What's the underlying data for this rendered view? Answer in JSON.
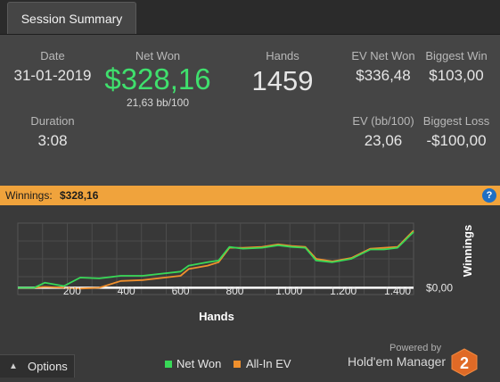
{
  "tab": {
    "title": "Session Summary"
  },
  "stats": {
    "date_label": "Date",
    "date_value": "31-01-2019",
    "net_won_label": "Net Won",
    "net_won_value": "$328,16",
    "net_won_sub": "21,63 bb/100",
    "hands_label": "Hands",
    "hands_value": "1459",
    "ev_net_won_label": "EV Net Won",
    "ev_net_won_value": "$336,48",
    "biggest_win_label": "Biggest Win",
    "biggest_win_value": "$103,00",
    "duration_label": "Duration",
    "duration_value": "3:08",
    "ev_bb_label": "EV (bb/100)",
    "ev_bb_value": "23,06",
    "biggest_loss_label": "Biggest Loss",
    "biggest_loss_value": "-$100,00"
  },
  "bar": {
    "key": "Winnings:",
    "amount": "$328,16",
    "help": "?"
  },
  "chart_data": {
    "type": "line",
    "xlabel": "Hands",
    "ylabel": "Winnings",
    "xlim": [
      0,
      1459
    ],
    "x_ticks": [
      200,
      400,
      600,
      800,
      1000,
      1200,
      1400
    ],
    "x_tick_labels": [
      "200",
      "400",
      "600",
      "800",
      "1.000",
      "1.200",
      "1.400"
    ],
    "y_tick_labels": [
      "$0,00"
    ],
    "ylim": [
      -40,
      380
    ],
    "grid": true,
    "series": [
      {
        "name": "Net Won",
        "color": "#38d957",
        "x": [
          0,
          60,
          100,
          170,
          230,
          300,
          380,
          460,
          600,
          630,
          700,
          740,
          780,
          830,
          900,
          960,
          1010,
          1060,
          1100,
          1160,
          1230,
          1300,
          1350,
          1400,
          1459
        ],
        "y": [
          0,
          0,
          30,
          10,
          60,
          55,
          70,
          70,
          95,
          130,
          150,
          160,
          240,
          230,
          235,
          250,
          240,
          235,
          160,
          150,
          170,
          225,
          225,
          235,
          328
        ]
      },
      {
        "name": "All-In EV",
        "color": "#f0902d",
        "x": [
          0,
          60,
          100,
          170,
          230,
          300,
          380,
          460,
          600,
          630,
          700,
          740,
          780,
          830,
          900,
          960,
          1010,
          1060,
          1100,
          1160,
          1230,
          1300,
          1350,
          1400,
          1459
        ],
        "y": [
          0,
          0,
          5,
          0,
          -5,
          0,
          40,
          45,
          70,
          110,
          130,
          150,
          235,
          235,
          240,
          255,
          245,
          240,
          170,
          155,
          175,
          230,
          235,
          240,
          336
        ]
      }
    ]
  },
  "options": {
    "label": "Options"
  },
  "legend": {
    "net_won": "Net Won",
    "all_in_ev": "All-In EV"
  },
  "branding": {
    "powered_by": "Powered by",
    "product": "Hold'em Manager",
    "logo_digit": "2"
  },
  "colors": {
    "accent_orange": "#f0a33c",
    "net_won_green": "#3fe06d"
  }
}
